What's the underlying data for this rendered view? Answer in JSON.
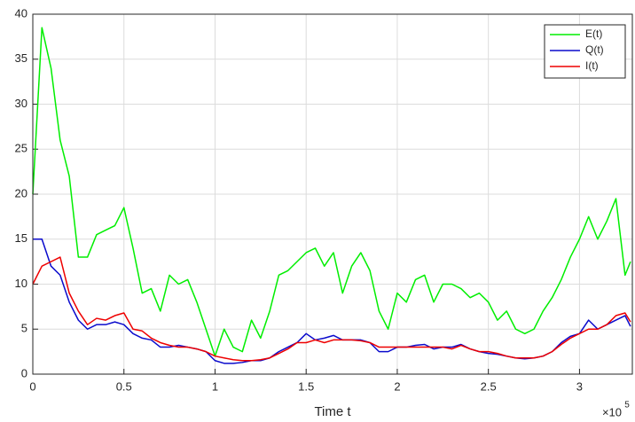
{
  "chart_data": {
    "type": "line",
    "xlabel": "Time t",
    "x_exponent_base": "×10",
    "x_exponent": "5",
    "x": [
      0,
      5000,
      10000,
      15000,
      20000,
      25000,
      30000,
      35000,
      40000,
      45000,
      50000,
      55000,
      60000,
      65000,
      70000,
      75000,
      80000,
      85000,
      90000,
      95000,
      100000,
      105000,
      110000,
      115000,
      120000,
      125000,
      130000,
      135000,
      140000,
      145000,
      150000,
      155000,
      160000,
      165000,
      170000,
      175000,
      180000,
      185000,
      190000,
      195000,
      200000,
      205000,
      210000,
      215000,
      220000,
      225000,
      230000,
      235000,
      240000,
      245000,
      250000,
      255000,
      260000,
      265000,
      270000,
      275000,
      280000,
      285000,
      290000,
      295000,
      300000,
      305000,
      310000,
      315000,
      320000,
      325000,
      328000
    ],
    "series": [
      {
        "name": "E(t)",
        "color": "#00ee00",
        "values": [
          20,
          38.5,
          34,
          26,
          22,
          13,
          13,
          15.5,
          16,
          16.5,
          18.5,
          14,
          9,
          9.5,
          7,
          11,
          10,
          10.5,
          8,
          5,
          2,
          5,
          3,
          2.5,
          6,
          4,
          7,
          11,
          11.5,
          12.5,
          13.5,
          14,
          12,
          13.5,
          9,
          12,
          13.5,
          11.5,
          7,
          5,
          9,
          8,
          10.5,
          11,
          8,
          10,
          10,
          9.5,
          8.5,
          9,
          8,
          6,
          7,
          5,
          4.5,
          5,
          7,
          8.5,
          10.5,
          13,
          15,
          17.5,
          15,
          17,
          19.5,
          11,
          12.5
        ]
      },
      {
        "name": "Q(t)",
        "color": "#0a0acc",
        "values": [
          15,
          15,
          12,
          11,
          8,
          6,
          5,
          5.5,
          5.5,
          5.8,
          5.5,
          4.5,
          4,
          3.8,
          3,
          3,
          3.2,
          3,
          2.8,
          2.5,
          1.5,
          1.2,
          1.2,
          1.3,
          1.5,
          1.5,
          1.8,
          2.5,
          3,
          3.5,
          4.5,
          3.8,
          4,
          4.3,
          3.8,
          3.8,
          3.8,
          3.5,
          2.5,
          2.5,
          3,
          3,
          3.2,
          3.3,
          2.8,
          3,
          3,
          3.3,
          2.8,
          2.5,
          2.3,
          2.2,
          2,
          1.8,
          1.7,
          1.8,
          2,
          2.5,
          3.5,
          4.2,
          4.5,
          6,
          5,
          5.5,
          6,
          6.5,
          5.3
        ]
      },
      {
        "name": "I(t)",
        "color": "#ee0000",
        "values": [
          10,
          12,
          12.5,
          13,
          9,
          7,
          5.5,
          6.2,
          6,
          6.5,
          6.8,
          5,
          4.8,
          4,
          3.5,
          3.2,
          3,
          3,
          2.8,
          2.5,
          2,
          1.8,
          1.6,
          1.5,
          1.5,
          1.6,
          1.8,
          2.3,
          2.8,
          3.5,
          3.5,
          3.8,
          3.5,
          3.8,
          3.8,
          3.8,
          3.7,
          3.5,
          3,
          3,
          3,
          3,
          3,
          3,
          3,
          3,
          2.8,
          3.2,
          2.8,
          2.5,
          2.5,
          2.3,
          2,
          1.8,
          1.8,
          1.8,
          2,
          2.5,
          3.3,
          4,
          4.5,
          5,
          5,
          5.5,
          6.5,
          6.8,
          5.8
        ]
      }
    ],
    "xlim": [
      0,
      329000
    ],
    "xticks": [
      0,
      {
        "value": 50000,
        "label": "0.5"
      },
      {
        "value": 100000,
        "label": "1"
      },
      {
        "value": 150000,
        "label": "1.5"
      },
      {
        "value": 200000,
        "label": "2"
      },
      {
        "value": 250000,
        "label": "2.5"
      },
      {
        "value": 300000,
        "label": "3"
      }
    ],
    "ylim": [
      0,
      40
    ],
    "yticks": [
      0,
      5,
      10,
      15,
      20,
      25,
      30,
      35,
      40
    ],
    "grid": true,
    "legend": "top-right"
  }
}
